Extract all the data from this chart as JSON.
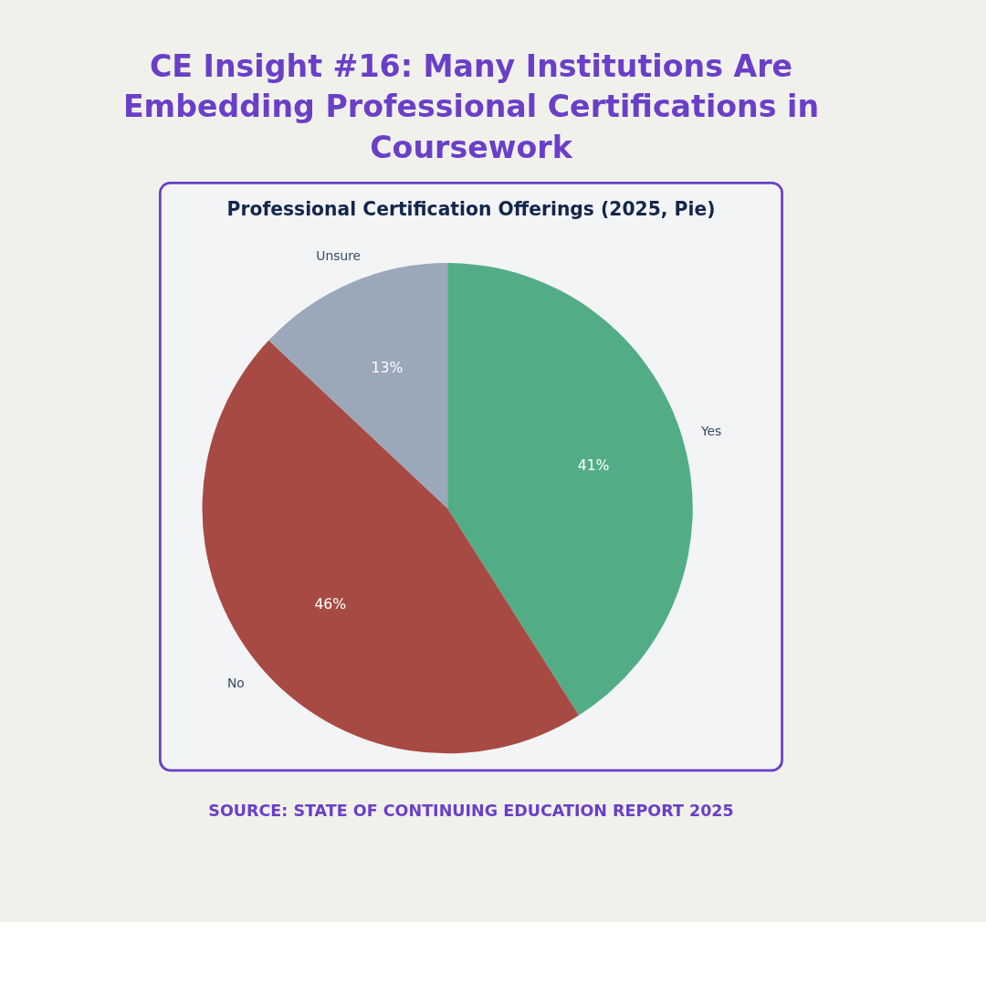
{
  "chart_data": {
    "type": "pie",
    "title": "CE Insight #16: Many Institutions Are Embedding Professional Certifications in Coursework",
    "subtitle": "Professional Certification Offerings    (2025, Pie)",
    "categories": [
      "Yes",
      "No",
      "Unsure"
    ],
    "values": [
      41,
      46,
      13
    ],
    "colors": [
      "#52ad86",
      "#a84a44",
      "#9aa8ba"
    ],
    "value_labels": [
      "41%",
      "46%",
      "13%"
    ],
    "annotations": [
      "SOURCE: STATE OF CONTINUING EDUCATION REPORT 2025"
    ]
  }
}
